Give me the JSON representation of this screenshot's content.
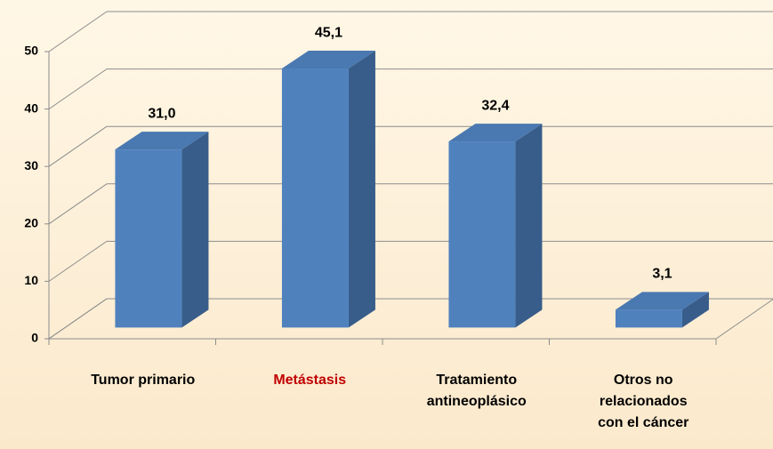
{
  "chart_data": {
    "type": "bar3d",
    "categories": [
      [
        "Tumor primario"
      ],
      [
        "Metástasis"
      ],
      [
        "Tratamiento",
        "antineoplásico"
      ],
      [
        "Otros no",
        "relacionados",
        "con el cáncer"
      ]
    ],
    "category_label_colors": [
      "#000000",
      "#c00000",
      "#000000",
      "#000000"
    ],
    "values": [
      31.0,
      45.1,
      32.4,
      3.1
    ],
    "value_labels": [
      "31,0",
      "45,1",
      "32,4",
      "3,1"
    ],
    "color": "#4f81bd",
    "ylim": [
      0,
      50
    ],
    "yticks": [
      0,
      10,
      20,
      30,
      40,
      50
    ],
    "grid": true
  }
}
